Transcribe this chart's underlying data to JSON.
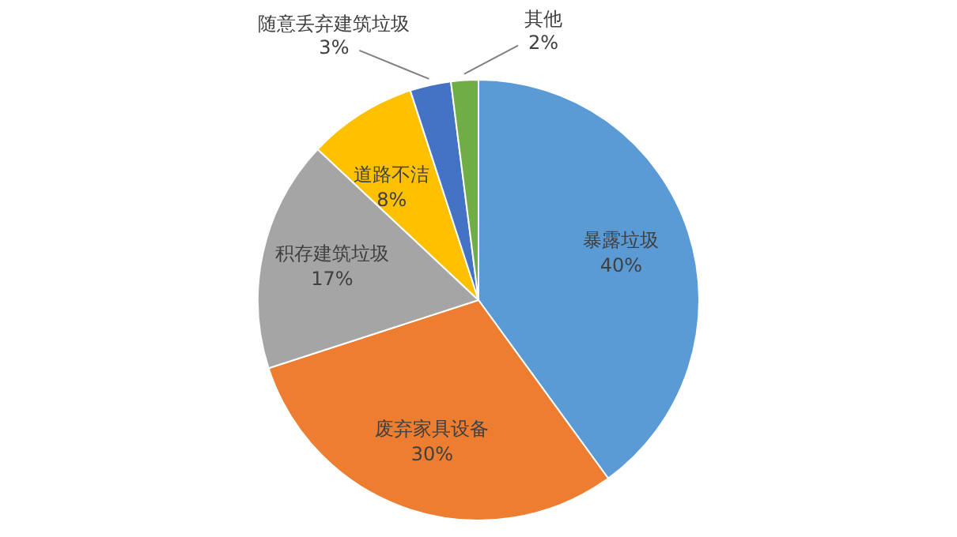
{
  "chart_data": {
    "type": "pie",
    "categories": [
      "暴露垃圾",
      "废弃家具设备",
      "积存建筑垃圾",
      "道路不洁",
      "随意丢弃建筑垃圾",
      "其他"
    ],
    "values": [
      40,
      30,
      17,
      8,
      3,
      2
    ],
    "colors": [
      "#5b9bd5",
      "#ed7d31",
      "#a5a5a5",
      "#ffc000",
      "#4472c4",
      "#70ad47"
    ],
    "value_labels": [
      "40%",
      "30%",
      "17%",
      "8%",
      "3%",
      "2%"
    ],
    "legend": false
  }
}
